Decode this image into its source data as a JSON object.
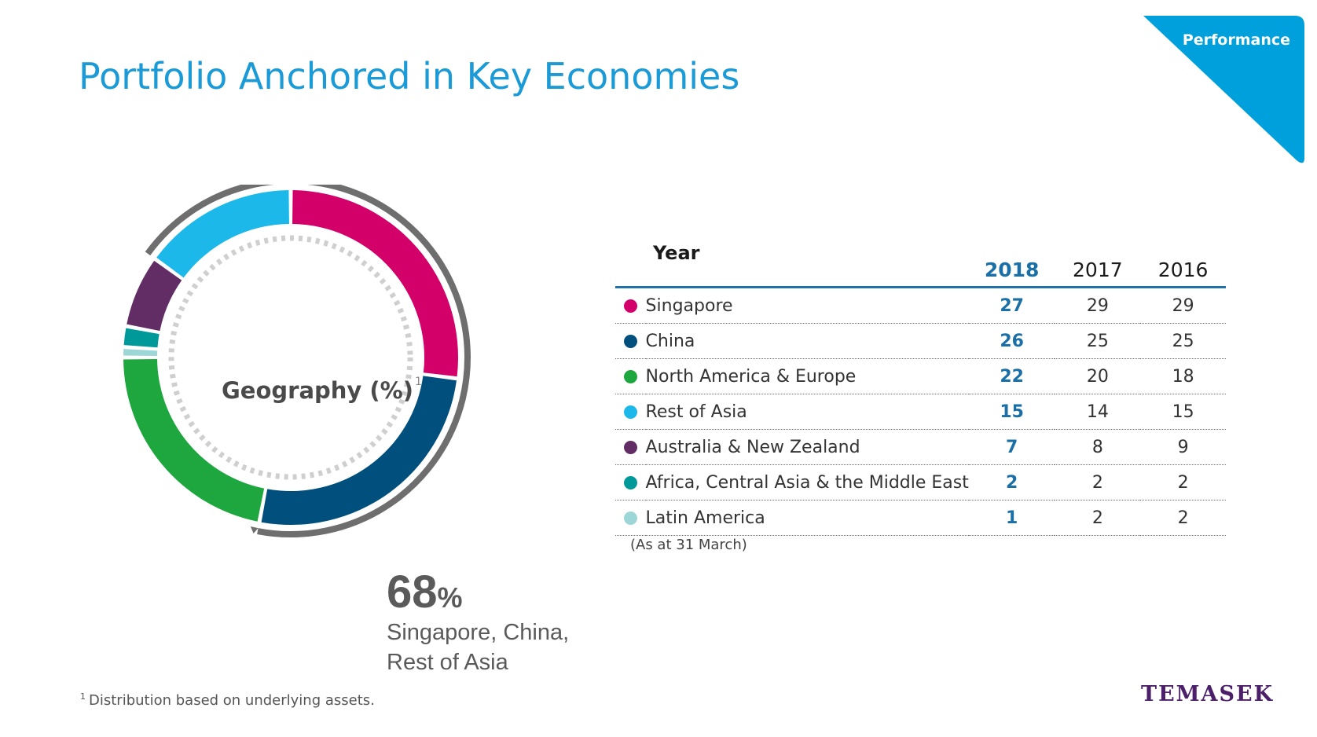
{
  "page": {
    "title": "Portfolio Anchored in Key Economies",
    "section_tab": "Performance",
    "logo_text": "TEMASEK",
    "footnote_marker": "1",
    "footnote_text": "Distribution based on underlying assets.",
    "note": "(As at 31 March)"
  },
  "donut": {
    "center_label": "Geography (%)",
    "center_sup": "1",
    "highlight_value": "68",
    "highlight_unit": "%",
    "highlight_desc_line1": "Singapore, China,",
    "highlight_desc_line2": "Rest of Asia",
    "highlight_total": 68
  },
  "table": {
    "year_label": "Year",
    "years": [
      "2018",
      "2017",
      "2016"
    ]
  },
  "colors": {
    "accent": "#1a9ad6",
    "header_rule": "#1f73a8",
    "arc_gray": "#6e6e6e",
    "logo": "#4b1f6a"
  },
  "chart_data": {
    "type": "pie",
    "title": "Geography (%)",
    "categories": [
      "Singapore",
      "China",
      "North America & Europe",
      "Rest of Asia",
      "Australia & New Zealand",
      "Africa, Central Asia & the Middle East",
      "Latin America"
    ],
    "series": [
      {
        "name": "2018",
        "values": [
          27,
          26,
          22,
          15,
          7,
          2,
          1
        ]
      },
      {
        "name": "2017",
        "values": [
          29,
          25,
          20,
          14,
          8,
          2,
          2
        ]
      },
      {
        "name": "2016",
        "values": [
          29,
          25,
          18,
          15,
          9,
          2,
          2
        ]
      }
    ],
    "colors": [
      "#d4006a",
      "#004f7c",
      "#1ea73e",
      "#1cb8ea",
      "#612d64",
      "#00999a",
      "#9dd6d6"
    ],
    "donut_order": [
      0,
      1,
      2,
      6,
      5,
      4,
      3
    ],
    "highlight_categories": [
      "Singapore",
      "China",
      "Rest of Asia"
    ]
  }
}
